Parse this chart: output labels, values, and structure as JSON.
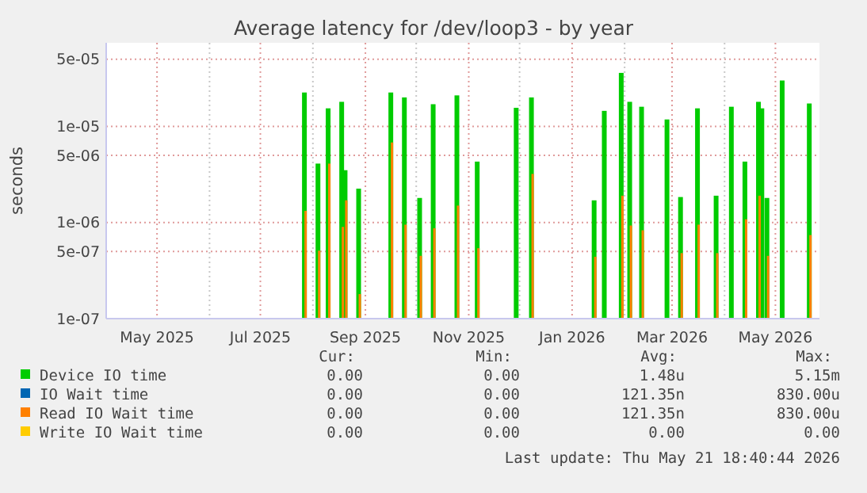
{
  "chart_data": {
    "type": "bar",
    "title": "Average latency for /dev/loop3 - by year",
    "ylabel": "seconds",
    "log": "y",
    "grid": true,
    "legend": "bottom",
    "x": [
      "2025-07-27",
      "2025-08-04",
      "2025-08-10",
      "2025-08-18",
      "2025-08-20",
      "2025-08-28",
      "2025-09-16",
      "2025-09-24",
      "2025-10-03",
      "2025-10-11",
      "2025-10-25",
      "2025-11-06",
      "2025-11-29",
      "2025-12-08",
      "2026-01-14",
      "2026-01-20",
      "2026-01-30",
      "2026-02-04",
      "2026-02-11",
      "2026-02-26",
      "2026-03-06",
      "2026-03-16",
      "2026-03-27",
      "2026-04-05",
      "2026-04-13",
      "2026-04-21",
      "2026-04-23",
      "2026-04-26",
      "2026-05-05",
      "2026-05-21"
    ],
    "xlim": [
      "2025-04-01",
      "2026-05-27"
    ],
    "xticks": [
      {
        "value": "2025-04-01",
        "label": null
      },
      {
        "value": "2025-05-01",
        "label": "May 2025"
      },
      {
        "value": "2025-06-01",
        "label": null
      },
      {
        "value": "2025-07-01",
        "label": "Jul 2025"
      },
      {
        "value": "2025-08-01",
        "label": null
      },
      {
        "value": "2025-09-01",
        "label": "Sep 2025"
      },
      {
        "value": "2025-10-01",
        "label": null
      },
      {
        "value": "2025-11-01",
        "label": "Nov 2025"
      },
      {
        "value": "2025-12-01",
        "label": null
      },
      {
        "value": "2026-01-01",
        "label": "Jan 2026"
      },
      {
        "value": "2026-02-01",
        "label": null
      },
      {
        "value": "2026-03-01",
        "label": "Mar 2026"
      },
      {
        "value": "2026-04-01",
        "label": null
      },
      {
        "value": "2026-05-01",
        "label": "May 2026"
      }
    ],
    "ylim": [
      1e-07,
      7.4e-05
    ],
    "yticks": [
      {
        "value": 1e-07,
        "label": "1e-07"
      },
      {
        "value": 5e-07,
        "label": "5e-07"
      },
      {
        "value": 1e-06,
        "label": "1e-06"
      },
      {
        "value": 5e-06,
        "label": "5e-06"
      },
      {
        "value": 1e-05,
        "label": "1e-05"
      },
      {
        "value": 5e-05,
        "label": "5e-05"
      }
    ],
    "series": [
      {
        "name": "Device IO time",
        "color": "#00cc00",
        "values": [
          2.25e-05,
          4.1e-06,
          1.54e-05,
          1.8e-05,
          3.5e-06,
          2.25e-06,
          2.25e-05,
          2e-05,
          1.8e-06,
          1.7e-05,
          2.1e-05,
          4.3e-06,
          1.56e-05,
          2e-05,
          1.7e-06,
          1.45e-05,
          3.6e-05,
          1.8e-05,
          1.6e-05,
          1.18e-05,
          1.84e-06,
          1.54e-05,
          1.9e-06,
          1.6e-05,
          4.3e-06,
          1.8e-05,
          1.54e-05,
          1.8e-06,
          3e-05,
          1.73e-05
        ]
      },
      {
        "name": "IO Wait time",
        "color": "#0066b3",
        "values": [
          null,
          null,
          null,
          null,
          null,
          null,
          null,
          null,
          null,
          null,
          null,
          null,
          null,
          null,
          null,
          null,
          null,
          null,
          null,
          null,
          null,
          null,
          null,
          null,
          null,
          null,
          null,
          null,
          null,
          null
        ]
      },
      {
        "name": "Read IO Wait time",
        "color": "#ff8000",
        "values": [
          1.32e-06,
          5.1e-07,
          4.1e-06,
          9e-07,
          1.7e-06,
          1.8e-07,
          6.8e-06,
          9.5e-07,
          4.5e-07,
          8.7e-07,
          1.5e-06,
          5.4e-07,
          null,
          3.2e-06,
          4.4e-07,
          null,
          1.9e-06,
          9.3e-07,
          8.3e-07,
          null,
          4.8e-07,
          9.5e-07,
          4.8e-07,
          null,
          1.08e-06,
          1.9e-06,
          null,
          4.5e-07,
          null,
          7.4e-07
        ]
      },
      {
        "name": "Write IO Wait time",
        "color": "#ffcc00",
        "values": [
          null,
          null,
          null,
          null,
          null,
          null,
          null,
          null,
          null,
          null,
          null,
          null,
          null,
          null,
          null,
          null,
          null,
          null,
          null,
          null,
          null,
          null,
          null,
          null,
          null,
          null,
          null,
          null,
          null,
          null
        ]
      }
    ],
    "annotations": [
      "Cur:",
      "Min:",
      "Avg:",
      "Max:",
      "0.00",
      "0.00",
      "1.48u",
      "5.15m",
      "0.00",
      "0.00",
      "121.35n",
      "830.00u",
      "0.00",
      "0.00",
      "121.35n",
      "830.00u",
      "0.00",
      "0.00",
      "0.00",
      "0.00",
      "Last update: Thu May 21 18:40:44 2026"
    ]
  }
}
